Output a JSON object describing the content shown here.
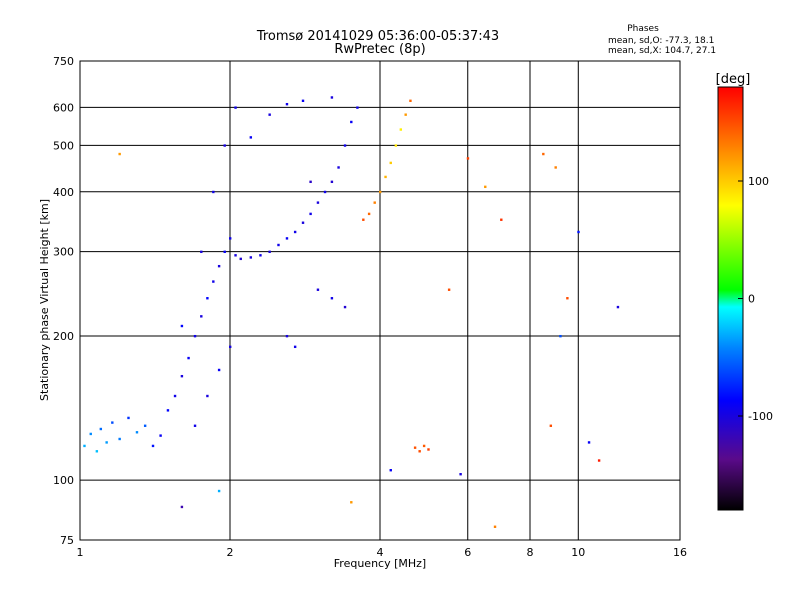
{
  "chart_data": {
    "type": "scatter",
    "title": "Tromsø 20141029 05:36:00-05:37:43",
    "subtitle": "RwPretec (8p)",
    "xlabel": "Frequency [MHz]",
    "ylabel": "Stationary phase Virtual Height [km]",
    "x_scale": "log",
    "y_scale": "log",
    "xlim": [
      1,
      16
    ],
    "ylim": [
      75,
      750
    ],
    "grid": true,
    "x_ticks": [
      {
        "value": 1,
        "label": "1"
      },
      {
        "value": 2,
        "label": "2"
      },
      {
        "value": 4,
        "label": "4"
      },
      {
        "value": 6,
        "label": "6"
      },
      {
        "value": 8,
        "label": "8"
      },
      {
        "value": 10,
        "label": "10"
      },
      {
        "value": 16,
        "label": "16"
      }
    ],
    "y_ticks": [
      {
        "value": 75,
        "label": "75"
      },
      {
        "value": 100,
        "label": "100"
      },
      {
        "value": 200,
        "label": "200"
      },
      {
        "value": 300,
        "label": "300"
      },
      {
        "value": 400,
        "label": "400"
      },
      {
        "value": 500,
        "label": "500"
      },
      {
        "value": 600,
        "label": "600"
      },
      {
        "value": 750,
        "label": "750"
      }
    ],
    "stats": {
      "heading": "Phases",
      "line_o": "mean, sd,O: -77.3, 18.1",
      "line_x": "mean, sd,X: 104.7, 27.1"
    },
    "colorbar": {
      "label": "[deg]",
      "range": [
        -180,
        180
      ],
      "ticks": [
        {
          "value": 100,
          "label": "100"
        },
        {
          "value": 0,
          "label": "0"
        },
        {
          "value": -100,
          "label": "-100"
        }
      ]
    },
    "points": [
      [
        1.02,
        118,
        -30
      ],
      [
        1.05,
        125,
        -40
      ],
      [
        1.08,
        115,
        -25
      ],
      [
        1.1,
        128,
        -50
      ],
      [
        1.13,
        120,
        -35
      ],
      [
        1.16,
        132,
        -60
      ],
      [
        1.2,
        122,
        -45
      ],
      [
        1.25,
        135,
        -70
      ],
      [
        1.3,
        126,
        -40
      ],
      [
        1.35,
        130,
        -55
      ],
      [
        1.4,
        118,
        -80
      ],
      [
        1.45,
        124,
        -90
      ],
      [
        1.5,
        140,
        -85
      ],
      [
        1.55,
        150,
        -95
      ],
      [
        1.6,
        165,
        -100
      ],
      [
        1.65,
        180,
        -90
      ],
      [
        1.7,
        200,
        -95
      ],
      [
        1.75,
        220,
        -100
      ],
      [
        1.8,
        240,
        -85
      ],
      [
        1.85,
        260,
        -95
      ],
      [
        1.9,
        280,
        -100
      ],
      [
        1.95,
        300,
        -90
      ],
      [
        2.0,
        320,
        -95
      ],
      [
        2.05,
        295,
        -100
      ],
      [
        2.1,
        290,
        -105
      ],
      [
        2.2,
        292,
        -100
      ],
      [
        2.3,
        295,
        -95
      ],
      [
        2.4,
        300,
        -100
      ],
      [
        2.5,
        310,
        -95
      ],
      [
        2.6,
        320,
        -90
      ],
      [
        2.7,
        330,
        -95
      ],
      [
        2.8,
        345,
        -100
      ],
      [
        2.9,
        360,
        -95
      ],
      [
        3.0,
        380,
        -100
      ],
      [
        3.1,
        400,
        -95
      ],
      [
        3.2,
        420,
        -105
      ],
      [
        3.3,
        450,
        -100
      ],
      [
        3.4,
        500,
        -95
      ],
      [
        3.5,
        560,
        -90
      ],
      [
        3.6,
        600,
        -95
      ],
      [
        3.7,
        350,
        150
      ],
      [
        3.8,
        360,
        140
      ],
      [
        3.9,
        380,
        130
      ],
      [
        4.0,
        400,
        120
      ],
      [
        4.1,
        430,
        110
      ],
      [
        4.2,
        460,
        100
      ],
      [
        4.3,
        500,
        90
      ],
      [
        4.4,
        540,
        85
      ],
      [
        4.5,
        580,
        120
      ],
      [
        4.6,
        620,
        140
      ],
      [
        1.7,
        130,
        -95
      ],
      [
        1.8,
        150,
        -100
      ],
      [
        1.9,
        170,
        -90
      ],
      [
        2.0,
        190,
        -100
      ],
      [
        1.6,
        210,
        -85
      ],
      [
        1.75,
        300,
        -100
      ],
      [
        1.85,
        400,
        -95
      ],
      [
        1.95,
        500,
        -100
      ],
      [
        2.05,
        600,
        -95
      ],
      [
        2.2,
        520,
        -90
      ],
      [
        2.4,
        580,
        -100
      ],
      [
        2.6,
        610,
        -95
      ],
      [
        2.8,
        620,
        -90
      ],
      [
        3.2,
        630,
        -100
      ],
      [
        2.9,
        420,
        -110
      ],
      [
        3.0,
        250,
        -100
      ],
      [
        3.2,
        240,
        -95
      ],
      [
        3.4,
        230,
        -105
      ],
      [
        2.6,
        200,
        -100
      ],
      [
        2.7,
        190,
        -95
      ],
      [
        4.8,
        115,
        150
      ],
      [
        4.9,
        118,
        145
      ],
      [
        5.0,
        116,
        155
      ],
      [
        4.7,
        117,
        148
      ],
      [
        5.5,
        250,
        150
      ],
      [
        6.0,
        470,
        155
      ],
      [
        6.5,
        410,
        120
      ],
      [
        7.0,
        350,
        160
      ],
      [
        8.5,
        480,
        140
      ],
      [
        9.0,
        450,
        130
      ],
      [
        9.5,
        240,
        150
      ],
      [
        10.0,
        330,
        -80
      ],
      [
        10.5,
        120,
        -90
      ],
      [
        11.0,
        110,
        170
      ],
      [
        8.8,
        130,
        150
      ],
      [
        9.2,
        200,
        -60
      ],
      [
        12.0,
        230,
        -100
      ],
      [
        1.2,
        480,
        120
      ],
      [
        1.9,
        95,
        -30
      ],
      [
        1.6,
        88,
        -120
      ],
      [
        3.5,
        90,
        120
      ],
      [
        4.2,
        105,
        -90
      ],
      [
        5.8,
        103,
        -100
      ],
      [
        6.8,
        80,
        130
      ]
    ]
  }
}
